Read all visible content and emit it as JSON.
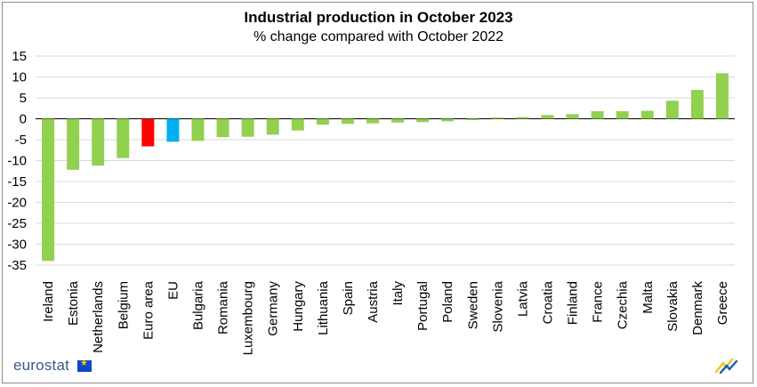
{
  "brand": {
    "name": "eurostat"
  },
  "chart_data": {
    "type": "bar",
    "title": "Industrial production in October 2023",
    "subtitle": "% change compared with October 2022",
    "xlabel": "",
    "ylabel": "",
    "ylim": [
      -35,
      15
    ],
    "yticks": [
      15,
      10,
      5,
      0,
      -5,
      -10,
      -15,
      -20,
      -25,
      -30,
      -35
    ],
    "grid": true,
    "categories": [
      "Ireland",
      "Estonia",
      "Netherlands",
      "Belgium",
      "Euro area",
      "EU",
      "Bulgaria",
      "Romania",
      "Luxembourg",
      "Germany",
      "Hungary",
      "Lithuania",
      "Spain",
      "Austria",
      "Italy",
      "Portugal",
      "Poland",
      "Sweden",
      "Slovenia",
      "Latvia",
      "Croatia",
      "Finland",
      "France",
      "Czechia",
      "Malta",
      "Slovakia",
      "Denmark",
      "Greece"
    ],
    "values": [
      -34.0,
      -12.2,
      -11.2,
      -9.4,
      -6.6,
      -5.5,
      -5.3,
      -4.4,
      -4.3,
      -3.8,
      -2.8,
      -1.4,
      -1.2,
      -1.1,
      -0.9,
      -0.8,
      -0.6,
      -0.3,
      0.3,
      0.4,
      0.9,
      1.1,
      1.8,
      1.8,
      1.9,
      4.3,
      6.9,
      10.9
    ],
    "colors": {
      "default": "#92d050",
      "Euro area": "#ff0000",
      "EU": "#00b0f0"
    }
  }
}
